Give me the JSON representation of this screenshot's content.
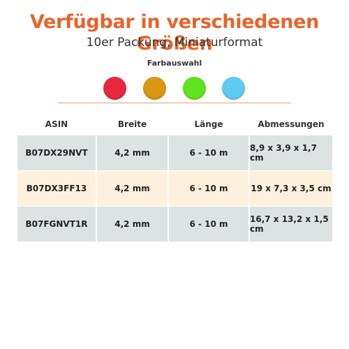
{
  "heading": {
    "title": "Verfügbar in verschiedenen Größen",
    "subtitle": "10er Packung, Miniaturformat"
  },
  "colors": {
    "title": "#e8632b",
    "divider": "#e0a27c",
    "row_gray": "#dde3e3",
    "row_cream": "#fdf1de"
  },
  "color_selection": {
    "label": "Farbauswahl",
    "swatches": [
      {
        "name": "red",
        "color": "#e8283d"
      },
      {
        "name": "orange",
        "color": "#d99712"
      },
      {
        "name": "green",
        "color": "#5ee31e"
      },
      {
        "name": "light-blue",
        "color": "#5ecbf2"
      }
    ]
  },
  "table": {
    "headers": [
      "ASIN",
      "Breite",
      "Länge",
      "Abmessungen"
    ],
    "rows": [
      [
        "B07DX29NVT",
        "4,2 mm",
        "6 - 10 m",
        "8,9 x 3,9 x 1,7 cm"
      ],
      [
        "B07DX3FF13",
        "4,2 mm",
        "6 - 10 m",
        "19 x 7,3 x 3,5 cm"
      ],
      [
        "B07FGNVT1R",
        "4,2 mm",
        "6 - 10 m",
        "16,7 x 13,2 x 1,5 cm"
      ]
    ]
  }
}
